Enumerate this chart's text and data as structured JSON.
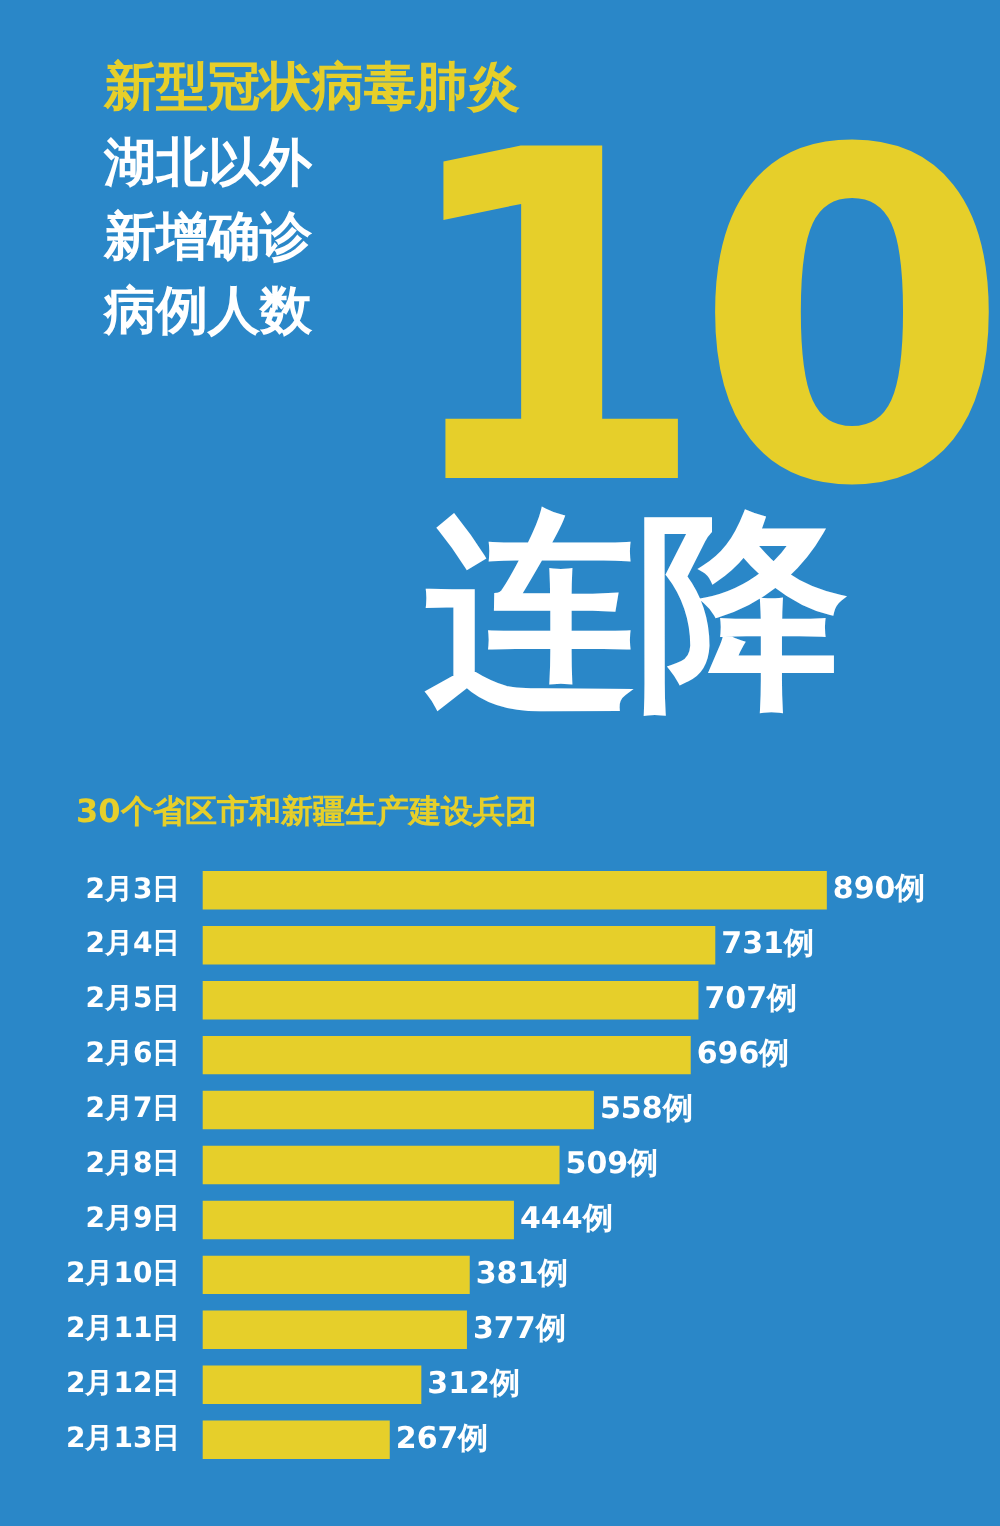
{
  "chart_data": {
    "type": "bar",
    "orientation": "horizontal",
    "title": "新型冠状病毒肺炎",
    "subtitle": "30个省区市和新疆生产建设兵团",
    "annotations": [
      "湖北以外",
      "新增确诊",
      "病例人数",
      "10",
      "连降"
    ],
    "categories": [
      "2月3日",
      "2月4日",
      "2月5日",
      "2月6日",
      "2月7日",
      "2月8日",
      "2月9日",
      "2月10日",
      "2月11日",
      "2月12日",
      "2月13日"
    ],
    "values": [
      890,
      731,
      707,
      696,
      558,
      509,
      444,
      381,
      377,
      312,
      267
    ],
    "value_labels": [
      "890例",
      "731例",
      "707例",
      "696例",
      "558例",
      "509例",
      "444例",
      "381例",
      "377例",
      "312例",
      "267例"
    ],
    "color": "#e6cf2a",
    "tick_labels": "y"
  }
}
